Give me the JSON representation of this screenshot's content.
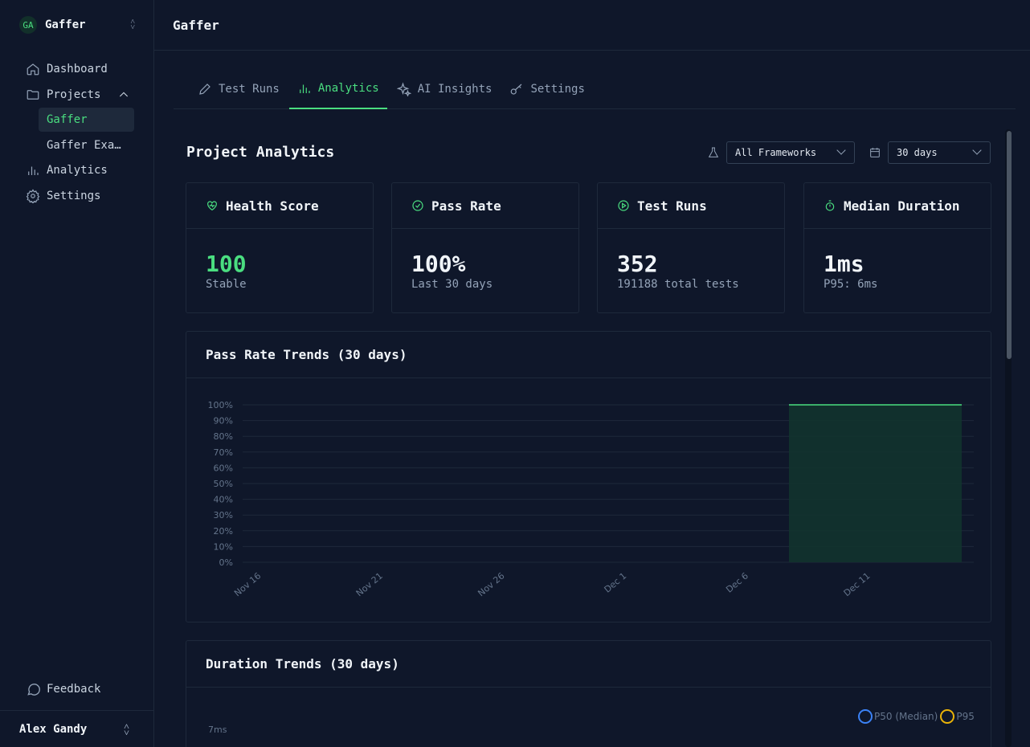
{
  "sidebar": {
    "team_initials": "GA",
    "team_name": "Gaffer",
    "nav": [
      {
        "label": "Dashboard",
        "icon": "home-icon"
      },
      {
        "label": "Projects",
        "icon": "folder-icon"
      },
      {
        "label": "Analytics",
        "icon": "bar-chart-icon"
      },
      {
        "label": "Settings",
        "icon": "gear-icon"
      }
    ],
    "projects": [
      "Gaffer",
      "Gaffer Exa…"
    ],
    "feedback_label": "Feedback",
    "user_name": "Alex Gandy"
  },
  "header": {
    "title": "Gaffer"
  },
  "tabs": [
    {
      "label": "Test Runs",
      "icon": "pencil-icon",
      "active": false
    },
    {
      "label": "Analytics",
      "icon": "bar-chart-icon",
      "active": true
    },
    {
      "label": "AI Insights",
      "icon": "sparkles-icon",
      "active": false
    },
    {
      "label": "Settings",
      "icon": "key-icon",
      "active": false
    }
  ],
  "analytics": {
    "title": "Project Analytics",
    "framework_filter": "All Frameworks",
    "range_filter": "30 days"
  },
  "stats": [
    {
      "title": "Health Score",
      "value": "100",
      "sub": "Stable",
      "icon": "heart-pulse-icon"
    },
    {
      "title": "Pass Rate",
      "value": "100%",
      "sub": "Last 30 days",
      "icon": "check-circle-icon"
    },
    {
      "title": "Test Runs",
      "value": "352",
      "sub": "191188 total tests",
      "icon": "play-circle-icon"
    },
    {
      "title": "Median Duration",
      "value": "1ms",
      "sub": "P95: 6ms",
      "icon": "stopwatch-icon"
    }
  ],
  "colors": {
    "accent": "#4ade80",
    "area_fill": "#12332e",
    "p50": "#3b82f6",
    "p95": "#eab308"
  },
  "pass_rate_panel": {
    "title": "Pass Rate Trends (30 days)"
  },
  "duration_panel": {
    "title": "Duration Trends (30 days)",
    "y_tick_partial": "7ms"
  },
  "chart_data": [
    {
      "type": "area",
      "title": "Pass Rate Trends (30 days)",
      "x_tick_labels": [
        "Nov 16",
        "Nov 21",
        "Nov 26",
        "Dec 1",
        "Dec 6",
        "Dec 11"
      ],
      "y_tick_labels": [
        "0%",
        "10%",
        "20%",
        "30%",
        "40%",
        "50%",
        "60%",
        "70%",
        "80%",
        "90%",
        "100%"
      ],
      "ylim": [
        0,
        100
      ],
      "x": [
        "Dec 8",
        "Dec 15"
      ],
      "values": [
        100,
        100
      ],
      "grid": true
    },
    {
      "type": "line",
      "title": "Duration Trends (30 days)",
      "series": [
        {
          "name": "P50 (Median)"
        },
        {
          "name": "P95"
        }
      ],
      "legend": "top-right"
    }
  ]
}
